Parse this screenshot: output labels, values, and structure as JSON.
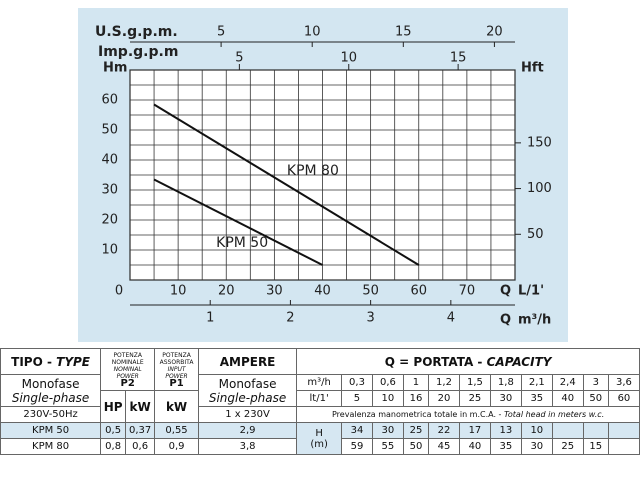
{
  "chart_data": {
    "type": "line",
    "x_label": "Q",
    "x_unit": "L/1'",
    "y_label": "Hm",
    "xlim": [
      0,
      80
    ],
    "ylim": [
      0,
      70
    ],
    "xticks": [
      0,
      10,
      20,
      30,
      40,
      50,
      60,
      70
    ],
    "yticks": [
      10,
      20,
      30,
      40,
      50,
      60
    ],
    "xgrid": [
      0,
      5,
      10,
      15,
      20,
      25,
      30,
      35,
      40,
      45,
      50,
      55,
      60,
      65,
      70,
      75,
      80
    ],
    "ygrid": [
      0,
      5,
      10,
      15,
      20,
      25,
      30,
      35,
      40,
      45,
      50,
      55,
      60,
      65,
      70
    ],
    "series": [
      {
        "name": "KPM 80",
        "color": "#111111",
        "x": [
          5,
          60
        ],
        "values": [
          58.5,
          5
        ]
      },
      {
        "name": "KPM 50",
        "color": "#111111",
        "x": [
          5,
          40
        ],
        "values": [
          33.5,
          5
        ]
      }
    ],
    "secondary_axes": [
      {
        "label": "U.S.g.p.m.",
        "side": "top",
        "lim": [
          0,
          21.13
        ],
        "ticks": [
          5,
          10,
          15,
          20
        ]
      },
      {
        "label": "Imp.g.p.m",
        "side": "top",
        "lim": [
          0,
          17.6
        ],
        "ticks": [
          5,
          10,
          15
        ]
      },
      {
        "label": "Hft",
        "side": "right",
        "lim": [
          0,
          229.7
        ],
        "ticks": [
          50,
          100,
          150
        ]
      },
      {
        "label": "Q",
        "unit": "m³/h",
        "side": "bottom",
        "lim": [
          0,
          4.8
        ],
        "ticks": [
          1,
          2,
          3,
          4
        ]
      }
    ]
  },
  "table": {
    "tipo": "TIPO -",
    "type": "TYPE",
    "p2": [
      "POTENZA",
      "NOMINALE",
      "NOMINAL",
      "POWER",
      "P2"
    ],
    "p1": [
      "POTENZA",
      "ASSORBITA",
      "INPUT",
      "POWER",
      "P1"
    ],
    "ampere": "AMPERE",
    "q": "Q = PORTATA -",
    "capacity": "CAPACITY",
    "monofase": "Monofase",
    "single_phase": "Single-phase",
    "hp": "HP",
    "kw": "kW",
    "kw1": "kW",
    "voltage": "230V-50Hz",
    "supply": "1 x 230V",
    "head_it": "Prevalenza manometrica totale in m.C.A. -",
    "head_en": "Total head in meters w.c.",
    "flow_m3h_unit": "m³/h",
    "flow_m3h": [
      "0,3",
      "0,6",
      "1",
      "1,2",
      "1,5",
      "1,8",
      "2,1",
      "2,4",
      "3",
      "3,6"
    ],
    "flow_lmin_unit": "lt/1'",
    "flow_lmin": [
      5,
      10,
      16,
      20,
      25,
      30,
      35,
      40,
      50,
      60
    ],
    "h_label": [
      "H",
      "(m)"
    ],
    "rows": [
      {
        "model": "KPM 50",
        "hp": "0,5",
        "kw2": "0,37",
        "kw1": "0,55",
        "amp": "2,9",
        "head": [
          34,
          30,
          25,
          22,
          17,
          13,
          10
        ]
      },
      {
        "model": "KPM 80",
        "hp": "0,8",
        "kw2": "0,6",
        "kw1": "0,9",
        "amp": "3,8",
        "head": [
          59,
          55,
          50,
          45,
          40,
          35,
          30,
          25,
          15
        ]
      }
    ]
  }
}
